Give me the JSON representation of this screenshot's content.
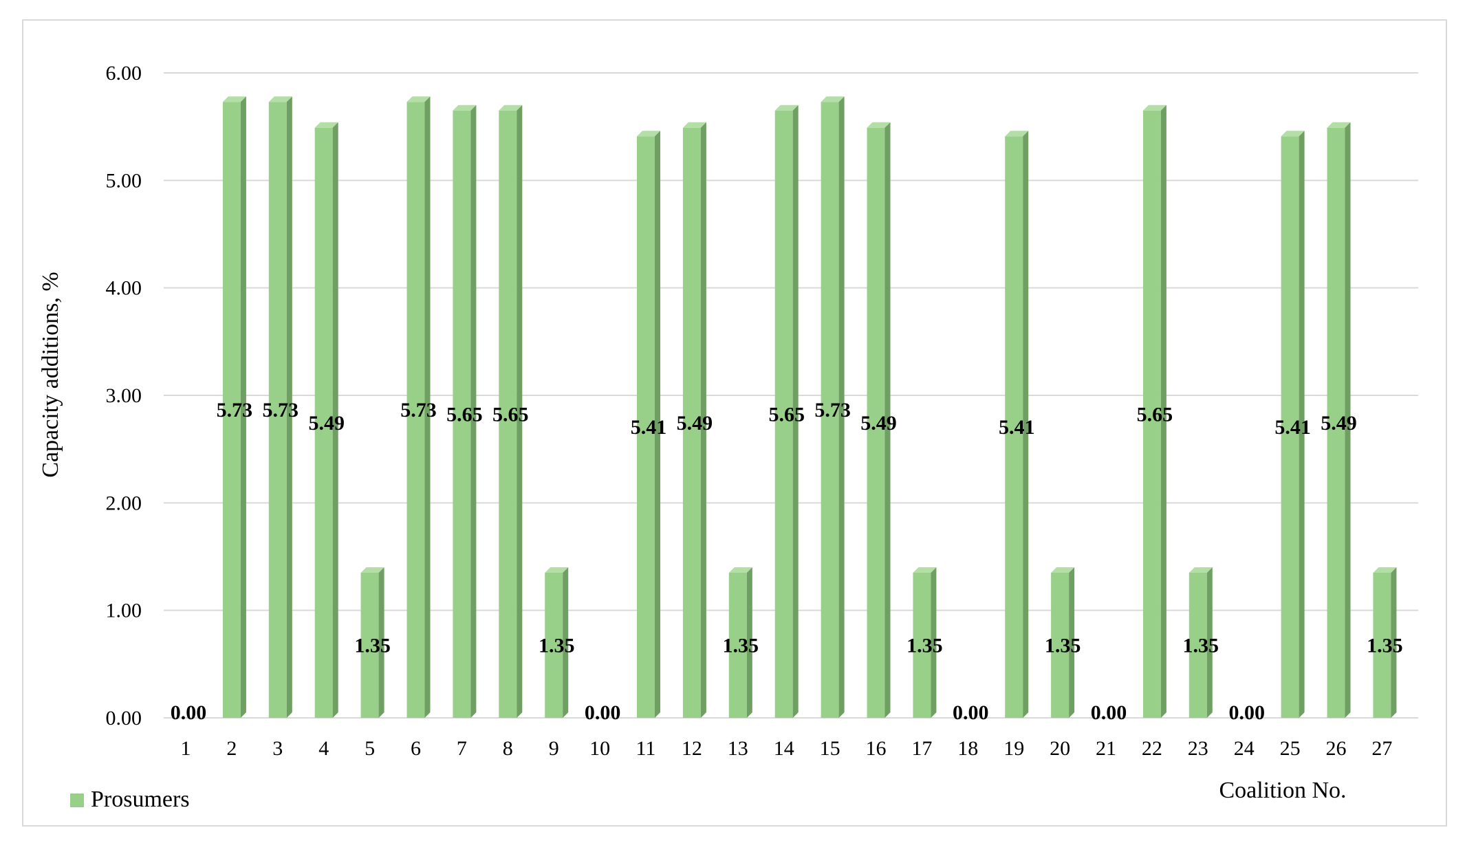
{
  "chart_data": {
    "type": "bar",
    "title": "",
    "xlabel": "Coalition No.",
    "ylabel": "Capacity additions, %",
    "ylim": [
      0,
      6
    ],
    "yticks": [
      "0.00",
      "1.00",
      "2.00",
      "3.00",
      "4.00",
      "5.00",
      "6.00"
    ],
    "grid": true,
    "legend_position": "bottom-left",
    "categories": [
      "1",
      "2",
      "3",
      "4",
      "5",
      "6",
      "7",
      "8",
      "9",
      "10",
      "11",
      "12",
      "13",
      "14",
      "15",
      "16",
      "17",
      "18",
      "19",
      "20",
      "21",
      "22",
      "23",
      "24",
      "25",
      "26",
      "27"
    ],
    "series": [
      {
        "name": "Prosumers",
        "color": "#98d08a",
        "values": [
          0.0,
          5.73,
          5.73,
          5.49,
          1.35,
          5.73,
          5.65,
          5.65,
          1.35,
          0.0,
          5.41,
          5.49,
          1.35,
          5.65,
          5.73,
          5.49,
          1.35,
          0.0,
          5.41,
          1.35,
          0.0,
          5.65,
          1.35,
          0.0,
          5.41,
          5.49,
          1.35
        ],
        "data_labels": [
          "0.00",
          "5.73",
          "5.73",
          "5.49",
          "1.35",
          "5.73",
          "5.65",
          "5.65",
          "1.35",
          "0.00",
          "5.41",
          "5.49",
          "1.35",
          "5.65",
          "5.73",
          "5.49",
          "1.35",
          "0.00",
          "5.41",
          "1.35",
          "0.00",
          "5.65",
          "1.35",
          "0.00",
          "5.41",
          "5.49",
          "1.35"
        ]
      }
    ]
  }
}
